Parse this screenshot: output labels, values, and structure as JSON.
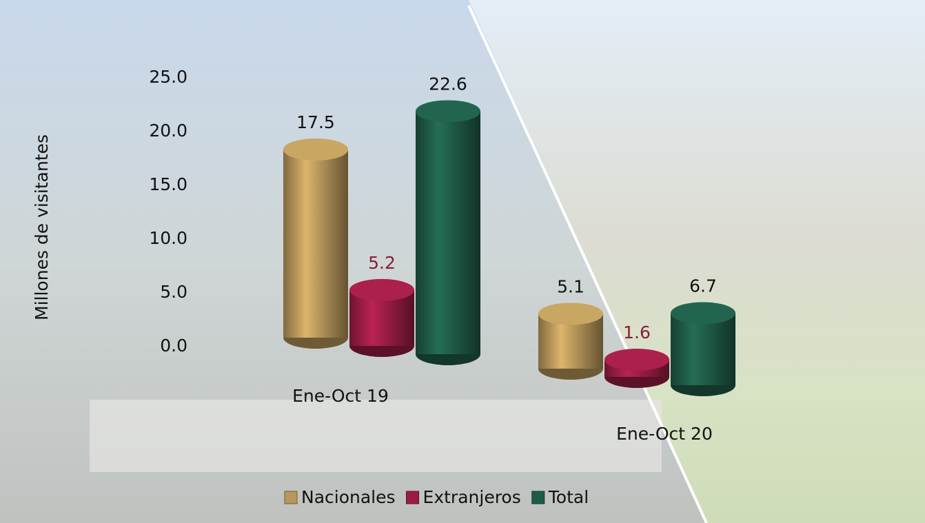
{
  "chart_data": {
    "type": "bar",
    "y_label": "Millones de visitantes",
    "categories": [
      "Ene-Oct 19",
      "Ene-Oct 20"
    ],
    "series": [
      {
        "name": "Nacionales",
        "color": "#b8975a",
        "values": [
          17.5,
          5.1
        ]
      },
      {
        "name": "Extranjeros",
        "color": "#9b1d45",
        "values": [
          5.2,
          1.6
        ]
      },
      {
        "name": "Total",
        "color": "#1f5c47",
        "values": [
          22.6,
          6.7
        ]
      }
    ],
    "ylim": [
      0,
      25
    ],
    "yticks": [
      {
        "value": 0,
        "label": "0.0"
      },
      {
        "value": 5,
        "label": "5.0"
      },
      {
        "value": 10,
        "label": "10.0"
      },
      {
        "value": 15,
        "label": "15.0"
      },
      {
        "value": 20,
        "label": "20.0"
      },
      {
        "value": 25,
        "label": "25.0"
      }
    ]
  }
}
